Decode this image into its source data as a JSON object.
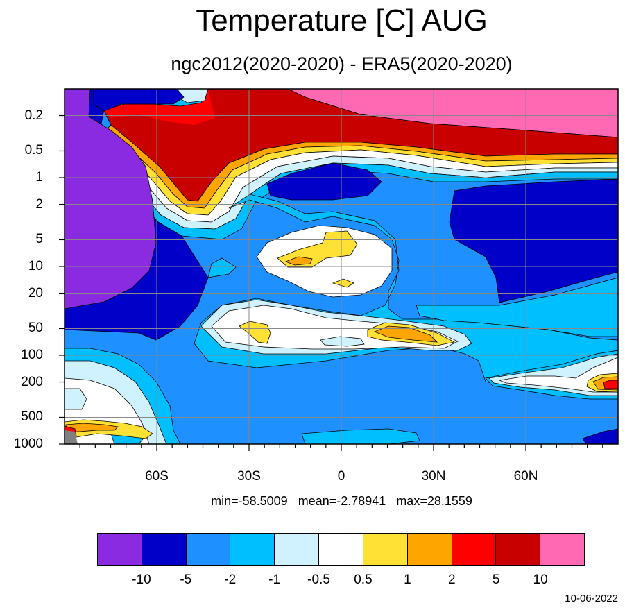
{
  "title": "Temperature [C] AUG",
  "subtitle": "ngc2012(2020-2020) - ERA5(2020-2020)",
  "stats": {
    "min": "min=-58.5009",
    "mean": "mean=-2.78941",
    "max": "max=28.1559"
  },
  "date": "10-06-2022",
  "chart_data": {
    "type": "heatmap",
    "title": "Temperature [C] AUG",
    "subtitle": "ngc2012(2020-2020) - ERA5(2020-2020)",
    "xlabel": "",
    "ylabel": "",
    "x_axis": {
      "range": [
        -90,
        90
      ],
      "ticks": [
        -60,
        -30,
        0,
        30,
        60
      ],
      "tick_labels": [
        "60S",
        "30S",
        "0",
        "30N",
        "60N"
      ]
    },
    "y_axis": {
      "scale": "log",
      "inverted": true,
      "range": [
        0.1,
        1000
      ],
      "ticks": [
        0.2,
        0.5,
        1,
        2,
        5,
        10,
        20,
        50,
        100,
        200,
        500,
        1000
      ],
      "tick_labels": [
        "0.2",
        "0.5",
        "1",
        "2",
        "5",
        "10",
        "20",
        "50",
        "100",
        "200",
        "500",
        "1000"
      ]
    },
    "grid": true,
    "contour_levels": [
      -10,
      -5,
      -2,
      -1,
      -0.5,
      0.5,
      1,
      2,
      5,
      10
    ],
    "level_labels": [
      "-10",
      "-5",
      "-2",
      "-1",
      "-0.5",
      "0.5",
      "1",
      "2",
      "5",
      "10"
    ],
    "colors": [
      "#8a2be2",
      "#0000c8",
      "#1e90ff",
      "#00bfff",
      "#d0f2ff",
      "#ffffff",
      "#ffe135",
      "#ffa500",
      "#ff0000",
      "#c80000",
      "#ff69b4"
    ],
    "missing_color": "#808080",
    "legend_placement": "bottom",
    "min": -58.5009,
    "mean": -2.78941,
    "max": 28.1559
  }
}
